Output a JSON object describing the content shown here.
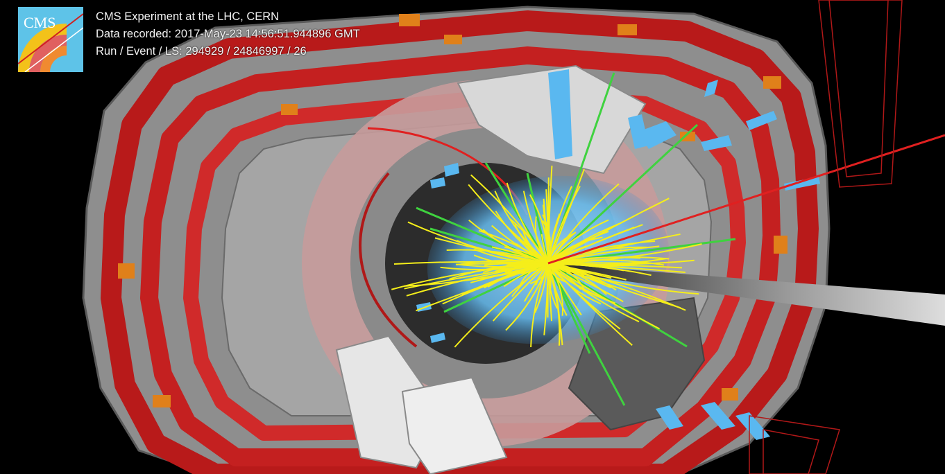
{
  "header": {
    "line1": "CMS Experiment at the LHC, CERN",
    "line2": "Data recorded: 2017-May-23 14:56:51.944896 GMT",
    "line3": "Run / Event / LS: 294929 / 24846997 / 26"
  },
  "logo": {
    "text": "CMS"
  },
  "colors": {
    "background": "#000000",
    "muon_chambers": "#b81a1a",
    "detector_gray": "#9a9a9a",
    "support_orange": "#e0801a",
    "hcal_energy": "#5ab8f0",
    "charged_tracks": "#f5ee1a",
    "muon_track": "#e02020",
    "green_tracks": "#3fd23f",
    "logo_bg": "#5ec3e8"
  },
  "icons": [
    "cms-logo"
  ]
}
